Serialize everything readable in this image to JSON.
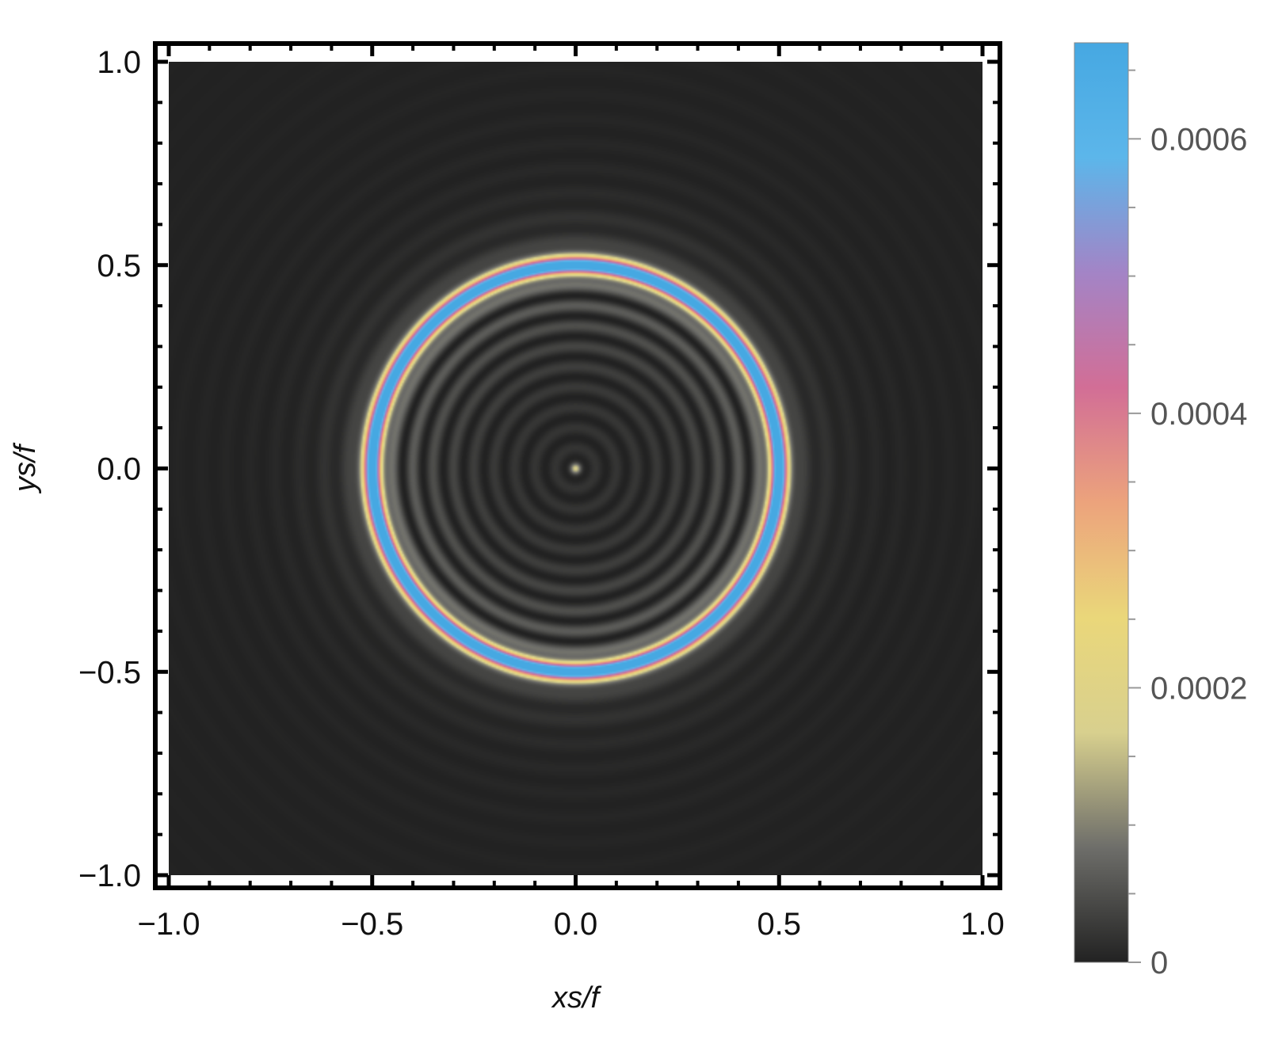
{
  "chart_data": {
    "type": "heatmap",
    "title": "",
    "xlabel": "xs/f",
    "ylabel": "ys/f",
    "xlim": [
      -1.0,
      1.0
    ],
    "ylim": [
      -1.0,
      1.0
    ],
    "x_ticks": [
      "−1.0",
      "−0.5",
      "0.0",
      "0.5",
      "1.0"
    ],
    "x_tick_values": [
      -1.0,
      -0.5,
      0.0,
      0.5,
      1.0
    ],
    "y_ticks": [
      "−1.0",
      "−0.5",
      "0.0",
      "0.5",
      "1.0"
    ],
    "y_tick_values": [
      -1.0,
      -0.5,
      0.0,
      0.5,
      1.0
    ],
    "colorbar": {
      "range": [
        0,
        0.00067
      ],
      "ticks": [
        "0",
        "0.0002",
        "0.0004",
        "0.0006"
      ],
      "tick_values": [
        0,
        0.0002,
        0.0004,
        0.0006
      ],
      "colors": [
        "#222222",
        "#6e6e6a",
        "#d8d08e",
        "#ead77a",
        "#eca37c",
        "#d26e96",
        "#a384c6",
        "#5cb6ea",
        "#46a8e2"
      ]
    },
    "pattern": {
      "description_type": "radial",
      "center": [
        0.0,
        0.0
      ],
      "main_ring_radius": 0.5,
      "main_ring_peak": 0.00066,
      "central_spot_value": 0.00015,
      "inner_fringe_spacing": 0.05,
      "outer_halo_radius": 0.6
    },
    "grid": false,
    "legend": "colorbar-right"
  }
}
